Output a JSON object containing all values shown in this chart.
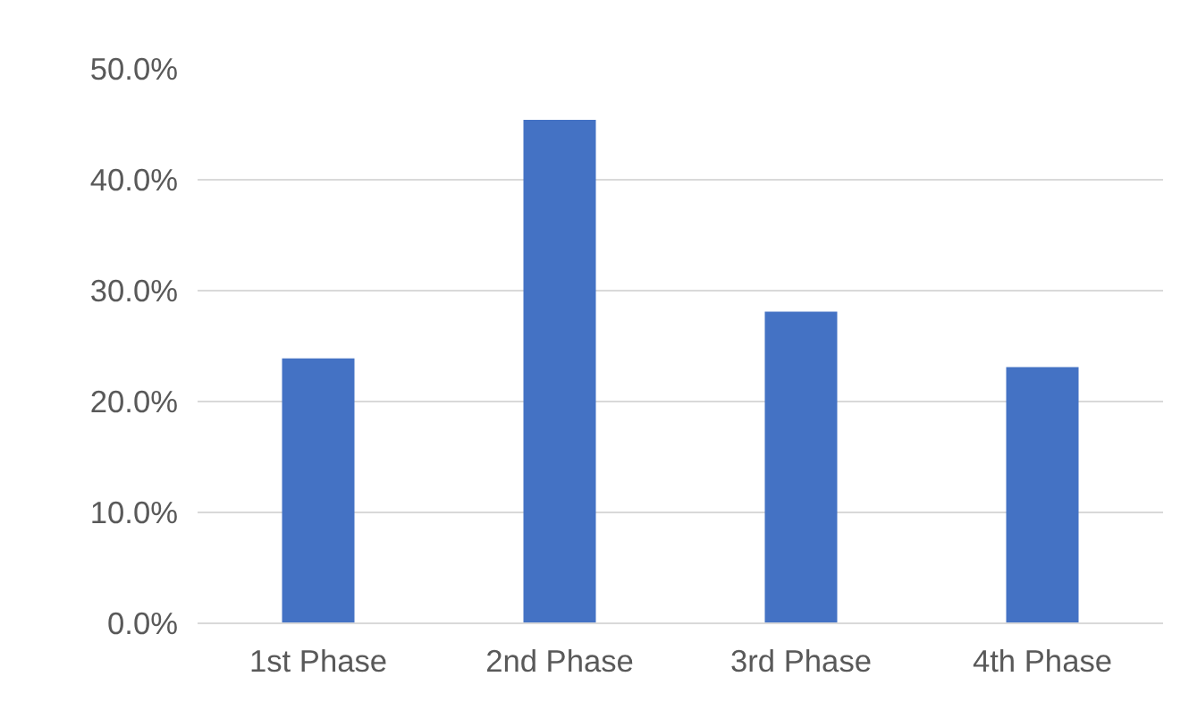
{
  "chart_data": {
    "type": "bar",
    "categories": [
      "1st Phase",
      "2nd Phase",
      "3rd Phase",
      "4th Phase"
    ],
    "values": [
      23.9,
      45.4,
      28.1,
      23.1
    ],
    "color": "#4472c4",
    "ylim": [
      0,
      50
    ],
    "yticks": [
      {
        "value": 0,
        "label": "0.0%"
      },
      {
        "value": 10,
        "label": "10.0%"
      },
      {
        "value": 20,
        "label": "20.0%"
      },
      {
        "value": 30,
        "label": "30.0%"
      },
      {
        "value": 40,
        "label": "40.0%"
      },
      {
        "value": 50,
        "label": "50.0%"
      }
    ],
    "grid": "y"
  }
}
